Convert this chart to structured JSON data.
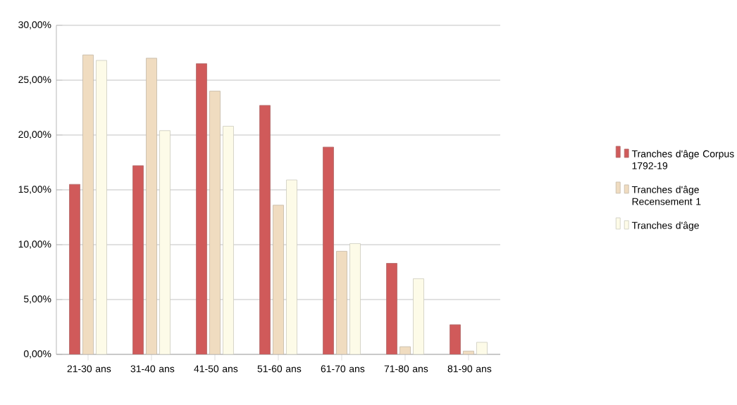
{
  "chart_data": {
    "type": "bar",
    "categories": [
      "21-30 ans",
      "31-40 ans",
      "41-50 ans",
      "51-60 ans",
      "61-70 ans",
      "71-80 ans",
      "81-90 ans"
    ],
    "series": [
      {
        "name": "Tranches d'âge Corpus 1792-19",
        "color": "#d05a5a",
        "values": [
          15.5,
          17.2,
          26.5,
          22.7,
          18.9,
          8.3,
          2.7
        ]
      },
      {
        "name": "Tranches d'âge Recensement 1",
        "color": "#f0dcc0",
        "values": [
          27.3,
          27.0,
          24.0,
          13.6,
          9.4,
          0.7,
          0.3
        ]
      },
      {
        "name": "Tranches d'âge",
        "color": "#fdfbe8",
        "values": [
          26.8,
          20.4,
          20.8,
          15.9,
          10.1,
          6.9,
          1.1
        ]
      }
    ],
    "ylim": [
      0,
      30
    ],
    "yticks": [
      {
        "value": 0,
        "label": "0,00%"
      },
      {
        "value": 5,
        "label": "5,00%"
      },
      {
        "value": 10,
        "label": "10,00%"
      },
      {
        "value": 15,
        "label": "15,00%"
      },
      {
        "value": 20,
        "label": "20,00%"
      },
      {
        "value": 25,
        "label": "25,00%"
      },
      {
        "value": 30,
        "label": "30,00%"
      }
    ],
    "grid": "y",
    "legend": "right"
  }
}
